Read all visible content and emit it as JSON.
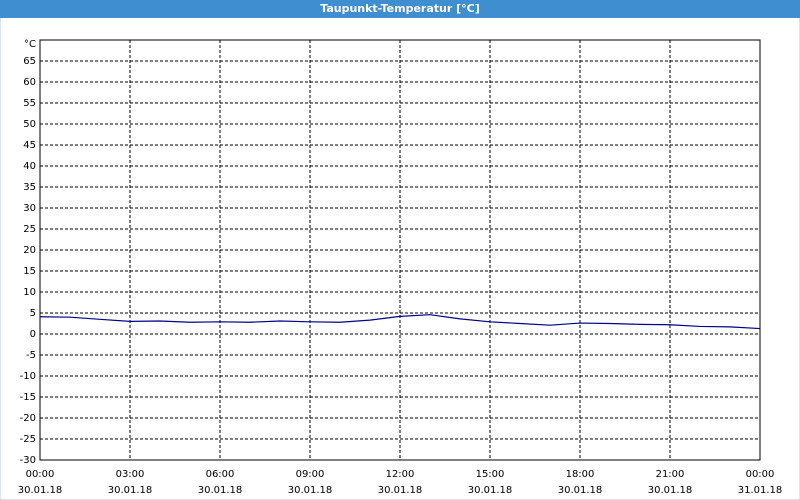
{
  "chart_data": {
    "type": "line",
    "title": "Taupunkt-Temperatur [°C]",
    "y_unit": "°C",
    "x": [
      0,
      1,
      2,
      3,
      4,
      5,
      6,
      7,
      8,
      9,
      10,
      11,
      12,
      13,
      14,
      15,
      16,
      17,
      18,
      19,
      20,
      21,
      22,
      23,
      24
    ],
    "series": [
      {
        "name": "Taupunkt",
        "color": "#00008b",
        "values": [
          4.1,
          4.0,
          3.5,
          3.0,
          3.1,
          2.8,
          2.9,
          2.8,
          3.1,
          2.9,
          2.8,
          3.3,
          4.2,
          4.6,
          3.6,
          2.9,
          2.5,
          2.1,
          2.6,
          2.5,
          2.3,
          2.2,
          1.8,
          1.7,
          1.3
        ]
      }
    ],
    "xlim": [
      0,
      24
    ],
    "xticks": [
      {
        "value": 0,
        "label": "00:00",
        "date": "30.01.18"
      },
      {
        "value": 3,
        "label": "03:00",
        "date": "30.01.18"
      },
      {
        "value": 6,
        "label": "06:00",
        "date": "30.01.18"
      },
      {
        "value": 9,
        "label": "09:00",
        "date": "30.01.18"
      },
      {
        "value": 12,
        "label": "12:00",
        "date": "30.01.18"
      },
      {
        "value": 15,
        "label": "15:00",
        "date": "30.01.18"
      },
      {
        "value": 18,
        "label": "18:00",
        "date": "30.01.18"
      },
      {
        "value": 21,
        "label": "21:00",
        "date": "30.01.18"
      },
      {
        "value": 24,
        "label": "00:00",
        "date": "31.01.18"
      }
    ],
    "ylim": [
      -30,
      70
    ],
    "yticks": [
      -30,
      -25,
      -20,
      -15,
      -10,
      -5,
      0,
      5,
      10,
      15,
      20,
      25,
      30,
      35,
      40,
      45,
      50,
      55,
      60,
      65
    ],
    "grid": true
  }
}
